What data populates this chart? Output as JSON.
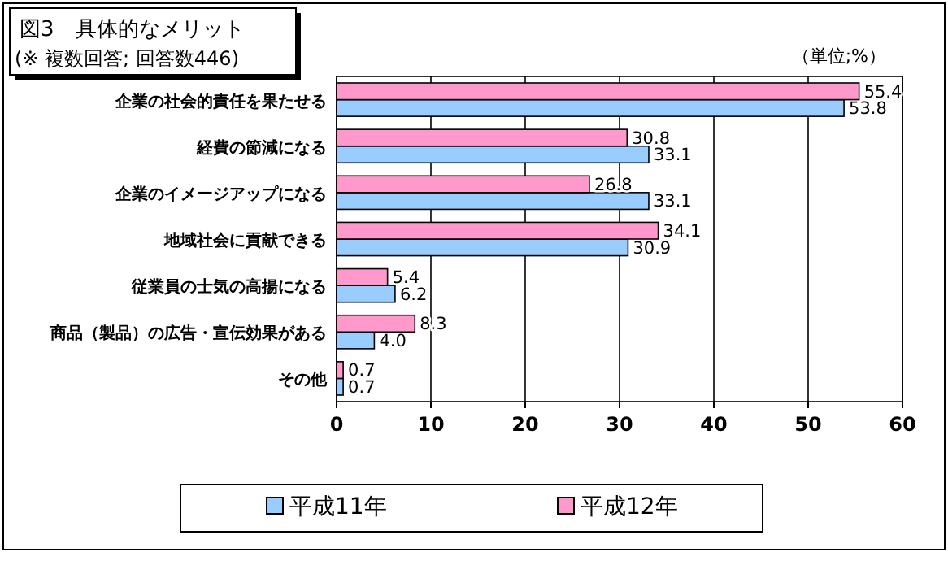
{
  "chart_data": {
    "type": "bar",
    "orientation": "horizontal",
    "title": "図3　具体的なメリット",
    "subtitle": "(※ 複数回答; 回答数446)",
    "annotations": [
      "（単位;%）"
    ],
    "categories": [
      "企業の社会的責任を果たせる",
      "経費の節減になる",
      "企業のイメージアップになる",
      "地域社会に貢献できる",
      "従業員の士気の高揚になる",
      "商品（製品）の広告・宣伝効果がある",
      "その他"
    ],
    "series": [
      {
        "name": "平成11年",
        "color": "#99ccff",
        "values": [
          53.8,
          33.1,
          33.1,
          30.9,
          6.2,
          4.0,
          0.7
        ],
        "value_labels": [
          "53.8",
          "33.1",
          "33.1",
          "30.9",
          "6.2",
          "4.0",
          "0.7"
        ]
      },
      {
        "name": "平成12年",
        "color": "#ff99cc",
        "values": [
          55.4,
          30.8,
          26.8,
          34.1,
          5.4,
          8.3,
          0.7
        ],
        "value_labels": [
          "55.4",
          "30.8",
          "26.8",
          "34.1",
          "5.4",
          "8.3",
          "0.7"
        ]
      }
    ],
    "xlim": [
      0,
      60
    ],
    "xticks": [
      0,
      10,
      20,
      30,
      40,
      50,
      60
    ],
    "grid": "x",
    "legend": "bottom"
  }
}
